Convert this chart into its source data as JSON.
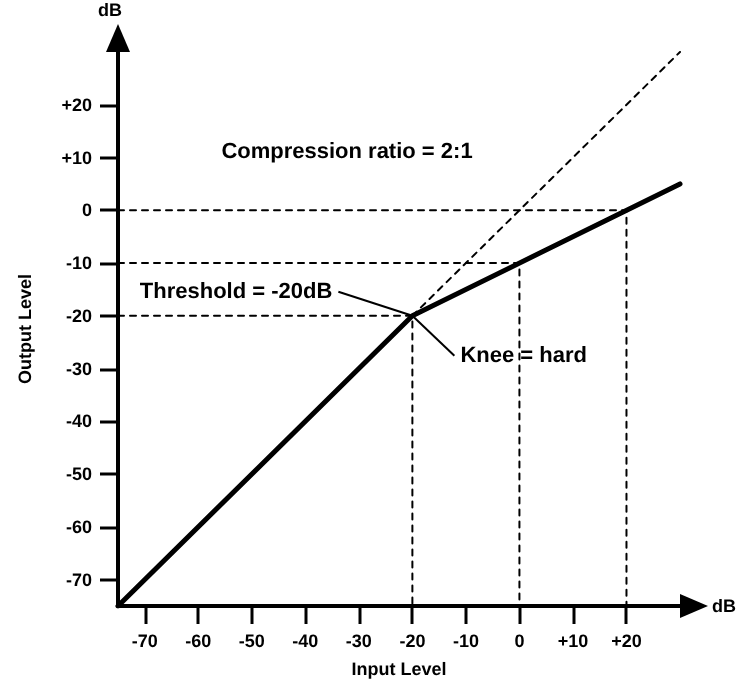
{
  "chart_data": {
    "type": "line",
    "xlabel": "Input Level",
    "ylabel": "Output Level",
    "xlim": [
      -75,
      30
    ],
    "ylim": [
      -75,
      30
    ],
    "marker": "none",
    "xticks": [
      -70,
      -60,
      -50,
      -40,
      -30,
      -20,
      -10,
      0,
      {
        "value": 10,
        "label": "+10"
      },
      {
        "value": 20,
        "label": "+20"
      }
    ],
    "yticks": [
      -70,
      -60,
      -50,
      -40,
      -30,
      -20,
      -10,
      0,
      {
        "value": 10,
        "label": "+10"
      },
      {
        "value": 20,
        "label": "+20"
      }
    ],
    "series": [
      {
        "color": "#000000",
        "line_style": "solid",
        "x": [
          -75,
          -20,
          30
        ],
        "values": [
          -75,
          -20,
          5
        ]
      },
      {
        "color": "#000000",
        "line_style": "dashed",
        "x": [
          -20,
          30
        ],
        "values": [
          -20,
          30
        ]
      },
      {
        "color": "#000000",
        "line_style": "dashed",
        "x": [
          -75,
          -20,
          -20
        ],
        "values": [
          -20,
          -20,
          -75
        ]
      },
      {
        "color": "#000000",
        "line_style": "dashed",
        "x": [
          -75,
          0,
          0
        ],
        "values": [
          -10,
          -10,
          -75
        ]
      },
      {
        "color": "#000000",
        "line_style": "dashed",
        "x": [
          -75,
          20,
          20
        ],
        "values": [
          0,
          0,
          -75
        ]
      }
    ],
    "annotations": [
      "dB",
      "dB",
      "Compression ratio = 2:1",
      {
        "text": "Threshold = -20dB",
        "x": -20,
        "y": -20
      },
      {
        "text": "Knee = hard",
        "x": -20,
        "y": -20
      }
    ]
  }
}
